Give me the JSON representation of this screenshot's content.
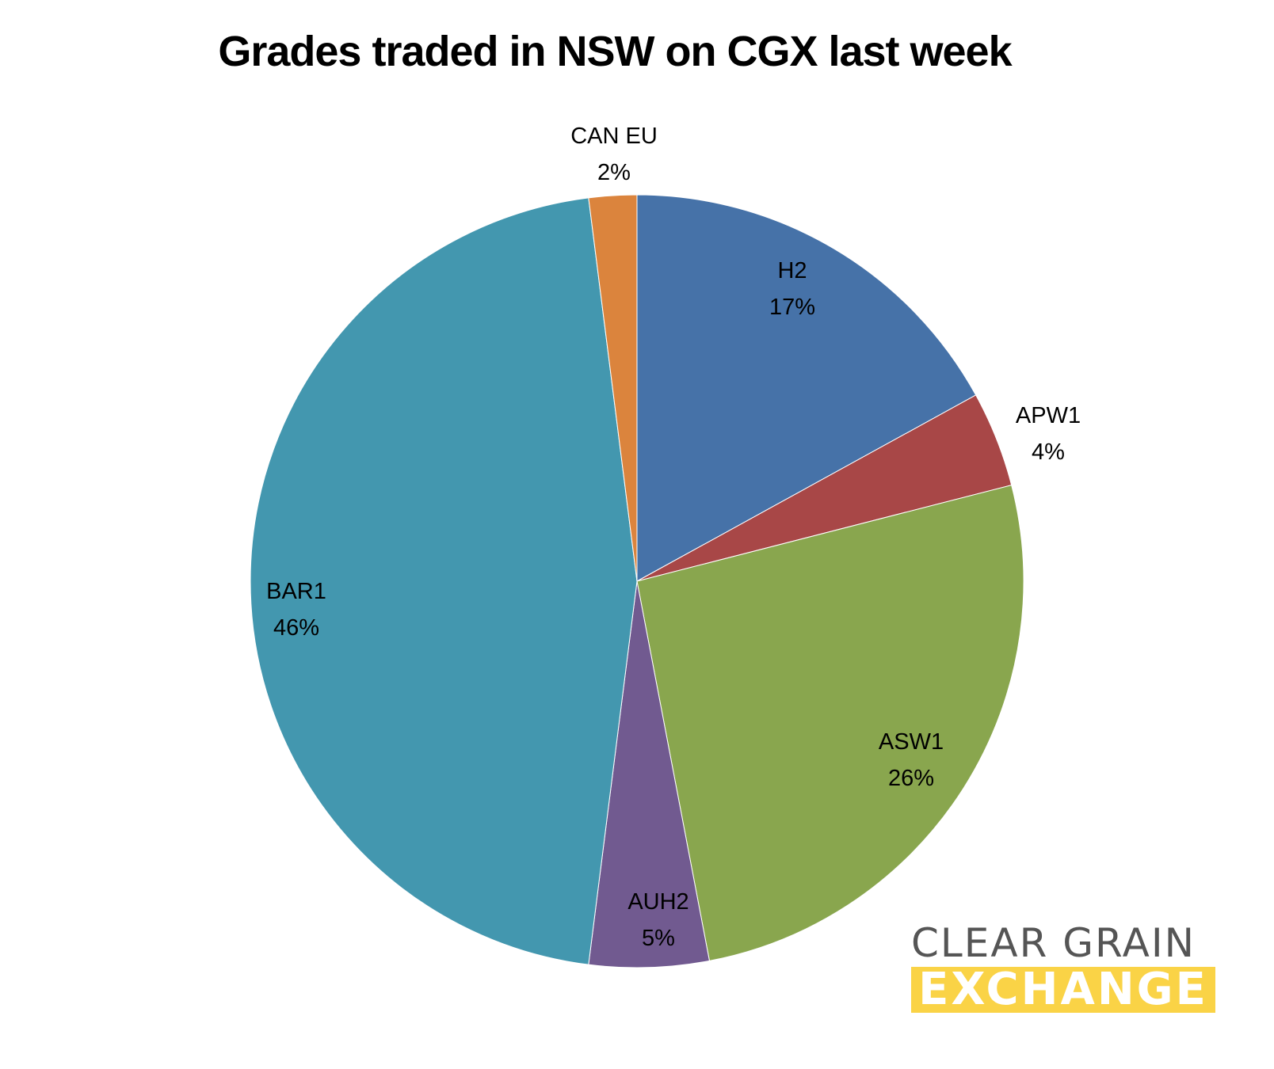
{
  "chart_data": {
    "type": "pie",
    "title": "Grades traded in NSW on CGX last week",
    "categories": [
      "H2",
      "APW1",
      "ASW1",
      "AUH2",
      "BAR1",
      "CAN EU"
    ],
    "values": [
      17,
      4,
      26,
      5,
      46,
      2
    ],
    "unit": "%",
    "colors": [
      "#4672A8",
      "#A84747",
      "#89A64E",
      "#715A90",
      "#4397AF",
      "#DB843D"
    ],
    "labels": [
      {
        "name": "H2",
        "pct": "17%"
      },
      {
        "name": "APW1",
        "pct": "4%"
      },
      {
        "name": "ASW1",
        "pct": "26%"
      },
      {
        "name": "AUH2",
        "pct": "5%"
      },
      {
        "name": "BAR1",
        "pct": "46%"
      },
      {
        "name": "CAN EU",
        "pct": "2%"
      }
    ],
    "start_angle": "12 o'clock, clockwise",
    "legend": "none (data labels on slices)"
  },
  "logo": {
    "line1": "CLEAR GRAIN",
    "line2": "EXCHANGE",
    "text_color": "#555555",
    "bar_color": "#FAD346"
  }
}
